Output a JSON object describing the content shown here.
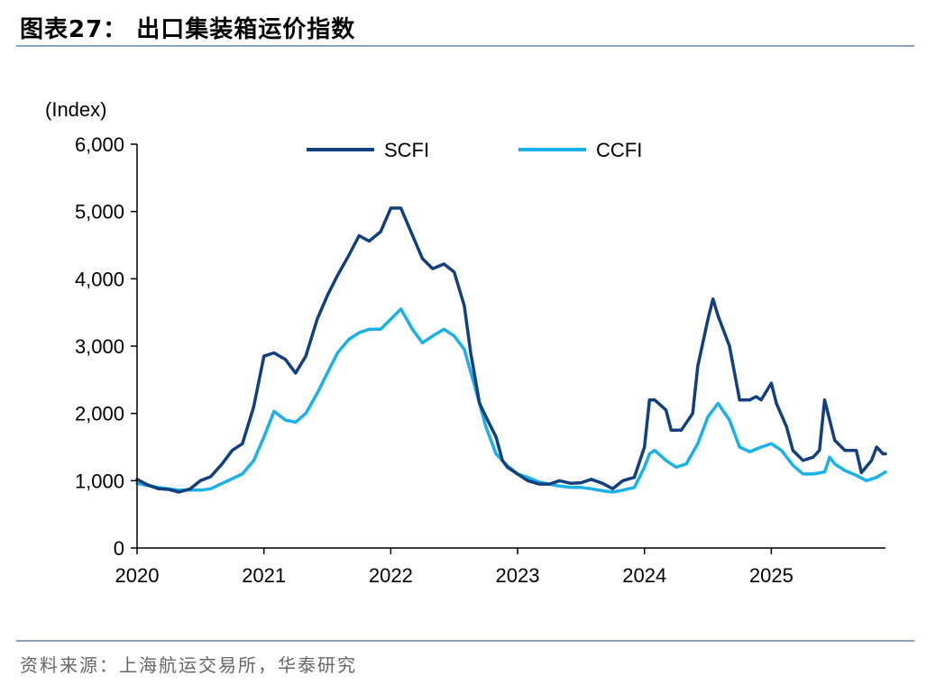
{
  "title": "图表27：  出口集装箱运价指数",
  "source": "资料来源：上海航运交易所，华泰研究",
  "chart_data": {
    "type": "line",
    "ylabel": "(Index)",
    "ylim": [
      0,
      6000
    ],
    "yticks": [
      0,
      1000,
      2000,
      3000,
      4000,
      5000,
      6000
    ],
    "ytick_labels": [
      "0",
      "1,000",
      "2,000",
      "3,000",
      "4,000",
      "5,000",
      "6,000"
    ],
    "xlim": [
      2020.0,
      2025.9
    ],
    "xticks": [
      2020,
      2021,
      2022,
      2023,
      2024,
      2025
    ],
    "xtick_labels": [
      "2020",
      "2021",
      "2022",
      "2023",
      "2024",
      "2025"
    ],
    "legend_position": "top",
    "grid": false,
    "series": [
      {
        "name": "SCFI",
        "color": "#123f7d",
        "points": [
          [
            2020.0,
            1020
          ],
          [
            2020.08,
            940
          ],
          [
            2020.17,
            880
          ],
          [
            2020.25,
            870
          ],
          [
            2020.33,
            830
          ],
          [
            2020.42,
            880
          ],
          [
            2020.5,
            1000
          ],
          [
            2020.58,
            1060
          ],
          [
            2020.67,
            1250
          ],
          [
            2020.75,
            1450
          ],
          [
            2020.83,
            1550
          ],
          [
            2020.92,
            2100
          ],
          [
            2021.0,
            2850
          ],
          [
            2021.08,
            2900
          ],
          [
            2021.17,
            2800
          ],
          [
            2021.25,
            2600
          ],
          [
            2021.33,
            2850
          ],
          [
            2021.42,
            3400
          ],
          [
            2021.5,
            3750
          ],
          [
            2021.58,
            4050
          ],
          [
            2021.67,
            4350
          ],
          [
            2021.75,
            4640
          ],
          [
            2021.83,
            4560
          ],
          [
            2021.92,
            4700
          ],
          [
            2022.0,
            5050
          ],
          [
            2022.08,
            5050
          ],
          [
            2022.17,
            4650
          ],
          [
            2022.25,
            4300
          ],
          [
            2022.33,
            4150
          ],
          [
            2022.42,
            4220
          ],
          [
            2022.5,
            4100
          ],
          [
            2022.58,
            3600
          ],
          [
            2022.63,
            2900
          ],
          [
            2022.7,
            2150
          ],
          [
            2022.75,
            1950
          ],
          [
            2022.83,
            1650
          ],
          [
            2022.88,
            1300
          ],
          [
            2022.92,
            1200
          ],
          [
            2023.0,
            1100
          ],
          [
            2023.08,
            1000
          ],
          [
            2023.17,
            950
          ],
          [
            2023.25,
            950
          ],
          [
            2023.33,
            1000
          ],
          [
            2023.42,
            960
          ],
          [
            2023.5,
            970
          ],
          [
            2023.58,
            1020
          ],
          [
            2023.67,
            960
          ],
          [
            2023.75,
            880
          ],
          [
            2023.83,
            1000
          ],
          [
            2023.92,
            1050
          ],
          [
            2024.0,
            1500
          ],
          [
            2024.04,
            2200
          ],
          [
            2024.08,
            2200
          ],
          [
            2024.17,
            2050
          ],
          [
            2024.21,
            1750
          ],
          [
            2024.29,
            1750
          ],
          [
            2024.38,
            2000
          ],
          [
            2024.42,
            2700
          ],
          [
            2024.5,
            3400
          ],
          [
            2024.54,
            3700
          ],
          [
            2024.58,
            3450
          ],
          [
            2024.67,
            3000
          ],
          [
            2024.75,
            2200
          ],
          [
            2024.83,
            2200
          ],
          [
            2024.88,
            2250
          ],
          [
            2024.92,
            2200
          ],
          [
            2025.0,
            2450
          ],
          [
            2025.04,
            2150
          ],
          [
            2025.12,
            1800
          ],
          [
            2025.17,
            1450
          ],
          [
            2025.25,
            1300
          ],
          [
            2025.33,
            1350
          ],
          [
            2025.38,
            1450
          ],
          [
            2025.42,
            2200
          ],
          [
            2025.46,
            1900
          ],
          [
            2025.5,
            1600
          ],
          [
            2025.58,
            1450
          ],
          [
            2025.67,
            1450
          ],
          [
            2025.71,
            1120
          ],
          [
            2025.79,
            1300
          ],
          [
            2025.83,
            1500
          ],
          [
            2025.88,
            1400
          ],
          [
            2025.9,
            1400
          ]
        ]
      },
      {
        "name": "CCFI",
        "color": "#1ab1e8",
        "points": [
          [
            2020.0,
            960
          ],
          [
            2020.08,
            930
          ],
          [
            2020.17,
            900
          ],
          [
            2020.25,
            880
          ],
          [
            2020.33,
            860
          ],
          [
            2020.42,
            860
          ],
          [
            2020.5,
            860
          ],
          [
            2020.58,
            880
          ],
          [
            2020.67,
            960
          ],
          [
            2020.75,
            1030
          ],
          [
            2020.83,
            1100
          ],
          [
            2020.92,
            1300
          ],
          [
            2021.0,
            1650
          ],
          [
            2021.08,
            2030
          ],
          [
            2021.17,
            1900
          ],
          [
            2021.25,
            1870
          ],
          [
            2021.33,
            2000
          ],
          [
            2021.42,
            2300
          ],
          [
            2021.5,
            2600
          ],
          [
            2021.58,
            2900
          ],
          [
            2021.67,
            3100
          ],
          [
            2021.75,
            3200
          ],
          [
            2021.83,
            3250
          ],
          [
            2021.92,
            3250
          ],
          [
            2022.0,
            3400
          ],
          [
            2022.08,
            3550
          ],
          [
            2022.17,
            3250
          ],
          [
            2022.25,
            3050
          ],
          [
            2022.33,
            3150
          ],
          [
            2022.42,
            3250
          ],
          [
            2022.5,
            3150
          ],
          [
            2022.58,
            2950
          ],
          [
            2022.67,
            2350
          ],
          [
            2022.75,
            1800
          ],
          [
            2022.83,
            1400
          ],
          [
            2022.92,
            1220
          ],
          [
            2023.0,
            1100
          ],
          [
            2023.08,
            1050
          ],
          [
            2023.17,
            980
          ],
          [
            2023.25,
            950
          ],
          [
            2023.33,
            920
          ],
          [
            2023.42,
            900
          ],
          [
            2023.5,
            900
          ],
          [
            2023.58,
            880
          ],
          [
            2023.67,
            850
          ],
          [
            2023.75,
            830
          ],
          [
            2023.83,
            860
          ],
          [
            2023.92,
            900
          ],
          [
            2024.0,
            1200
          ],
          [
            2024.04,
            1400
          ],
          [
            2024.08,
            1450
          ],
          [
            2024.17,
            1300
          ],
          [
            2024.25,
            1200
          ],
          [
            2024.33,
            1250
          ],
          [
            2024.42,
            1550
          ],
          [
            2024.5,
            1950
          ],
          [
            2024.58,
            2150
          ],
          [
            2024.67,
            1900
          ],
          [
            2024.75,
            1500
          ],
          [
            2024.83,
            1430
          ],
          [
            2024.92,
            1500
          ],
          [
            2025.0,
            1550
          ],
          [
            2025.08,
            1450
          ],
          [
            2025.17,
            1230
          ],
          [
            2025.25,
            1100
          ],
          [
            2025.33,
            1100
          ],
          [
            2025.42,
            1130
          ],
          [
            2025.46,
            1350
          ],
          [
            2025.5,
            1250
          ],
          [
            2025.58,
            1150
          ],
          [
            2025.67,
            1080
          ],
          [
            2025.75,
            1000
          ],
          [
            2025.83,
            1050
          ],
          [
            2025.9,
            1130
          ]
        ]
      }
    ]
  }
}
